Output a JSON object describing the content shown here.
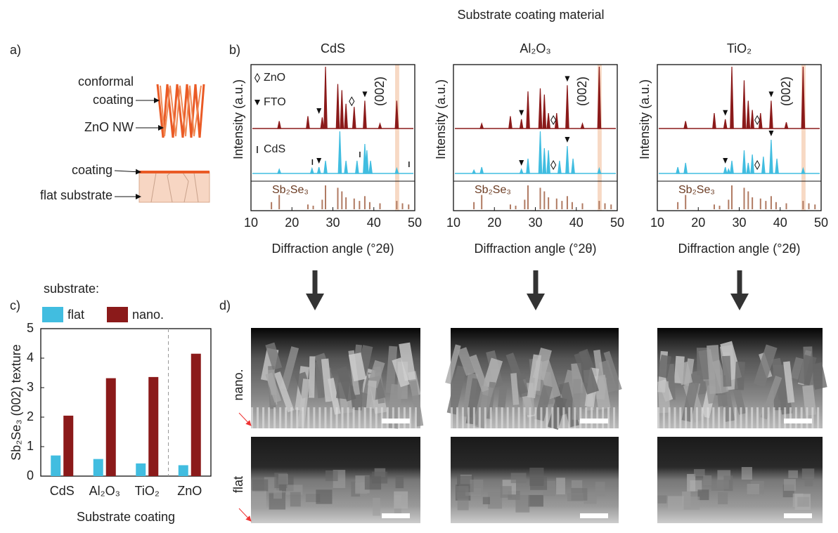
{
  "super_title": "Substrate coating material",
  "panel_labels": [
    "a)",
    "b)",
    "c)",
    "d)"
  ],
  "schematic": {
    "conformal_coating": [
      "conformal",
      "coating"
    ],
    "zno_nw": "ZnO NW",
    "coating": "coating",
    "flat_substrate": "flat substrate"
  },
  "legend": {
    "title": "substrate:"
  },
  "xrd": {
    "xlabel": "Diffraction angle (°2θ)",
    "ylabel": "Intensity (a.u.)",
    "xlim": [
      10,
      50
    ],
    "xticks": [
      10,
      20,
      30,
      40,
      50
    ],
    "peak_label": "(002)",
    "highlight_range": [
      45.2,
      46.2
    ],
    "marker_legend": [
      "ZnO",
      "FTO",
      "CdS"
    ],
    "reference": {
      "name": "Sb₂Se₃",
      "color": "#b07a62",
      "x": [
        15.0,
        16.9,
        23.9,
        25.2,
        27.4,
        28.2,
        31.2,
        32.2,
        33.2,
        35.2,
        36.5,
        37.8,
        39.0,
        41.5,
        45.6,
        47.0,
        48.5
      ],
      "values": [
        30,
        60,
        20,
        15,
        40,
        100,
        90,
        75,
        50,
        45,
        35,
        55,
        30,
        25,
        35,
        25,
        20
      ]
    },
    "panels": [
      {
        "title": "CdS",
        "nano": {
          "x": [
            16.9,
            23.9,
            27.4,
            28.2,
            31.2,
            32.2,
            33.2,
            35.2,
            37.8,
            41.5,
            45.6
          ],
          "values": [
            12,
            20,
            18,
            100,
            72,
            62,
            40,
            35,
            45,
            8,
            45
          ]
        },
        "flat": {
          "x": [
            16.9,
            24.9,
            26.6,
            28.2,
            31.7,
            33.2,
            35.9,
            37.8,
            38.3,
            39.2,
            45.6
          ],
          "values": [
            10,
            12,
            15,
            30,
            100,
            30,
            30,
            70,
            55,
            30,
            12
          ]
        },
        "markers": {
          "fto_nano": [
            26.6,
            37.8
          ],
          "zno_nano": [
            34.6
          ],
          "fto_flat": [
            26.6
          ],
          "zno_flat": [],
          "cds_flat": [
            25.0,
            36.6,
            48.6
          ]
        }
      },
      {
        "title": "Al₂O₃",
        "nano": {
          "x": [
            16.9,
            23.9,
            26.6,
            28.2,
            31.2,
            32.2,
            33.2,
            35.2,
            37.8,
            41.5,
            45.6
          ],
          "values": [
            8,
            20,
            15,
            60,
            65,
            55,
            25,
            25,
            70,
            8,
            100
          ]
        },
        "flat": {
          "x": [
            15.0,
            16.9,
            26.6,
            28.2,
            31.2,
            32.2,
            33.2,
            35.9,
            37.8,
            39.2,
            45.6
          ],
          "values": [
            8,
            15,
            10,
            35,
            100,
            60,
            55,
            30,
            65,
            35,
            12
          ]
        },
        "markers": {
          "fto_nano": [
            26.6,
            37.8
          ],
          "zno_nano": [
            34.4
          ],
          "fto_flat": [
            26.6,
            37.8
          ],
          "zno_flat": [
            34.4
          ],
          "cds_flat": []
        }
      },
      {
        "title": "TiO₂",
        "nano": {
          "x": [
            16.9,
            23.9,
            26.6,
            28.2,
            31.2,
            32.2,
            33.2,
            35.2,
            37.8,
            41.5,
            45.6
          ],
          "values": [
            12,
            25,
            15,
            100,
            78,
            45,
            30,
            25,
            45,
            10,
            100
          ]
        },
        "flat": {
          "x": [
            15.0,
            16.9,
            26.6,
            27.4,
            28.2,
            31.2,
            32.2,
            33.2,
            35.9,
            37.8,
            39.2,
            45.6
          ],
          "values": [
            15,
            25,
            15,
            10,
            30,
            55,
            25,
            45,
            40,
            80,
            35,
            12
          ]
        },
        "markers": {
          "fto_nano": [
            26.6,
            37.8
          ],
          "zno_nano": [
            34.4
          ],
          "fto_flat": [
            26.6,
            37.8
          ],
          "zno_flat": [
            34.4
          ],
          "cds_flat": []
        }
      }
    ]
  },
  "chart_data": {
    "type": "bar",
    "ylabel": "Sb₂Se₃ (002) texture",
    "xlabel": "Substrate coating",
    "categories": [
      "CdS",
      "Al₂O₃",
      "TiO₂",
      "ZnO"
    ],
    "series": [
      {
        "name": "flat",
        "color": "#41bde0",
        "values": [
          0.7,
          0.58,
          0.43,
          0.37
        ]
      },
      {
        "name": "nano.",
        "color": "#8b1a1a",
        "values": [
          2.05,
          3.32,
          3.36,
          4.15
        ]
      }
    ],
    "ylim": [
      0,
      5
    ],
    "yticks": [
      0,
      1,
      2,
      3,
      4,
      5
    ]
  },
  "sem": {
    "row_labels": [
      "nano.",
      "flat"
    ]
  }
}
